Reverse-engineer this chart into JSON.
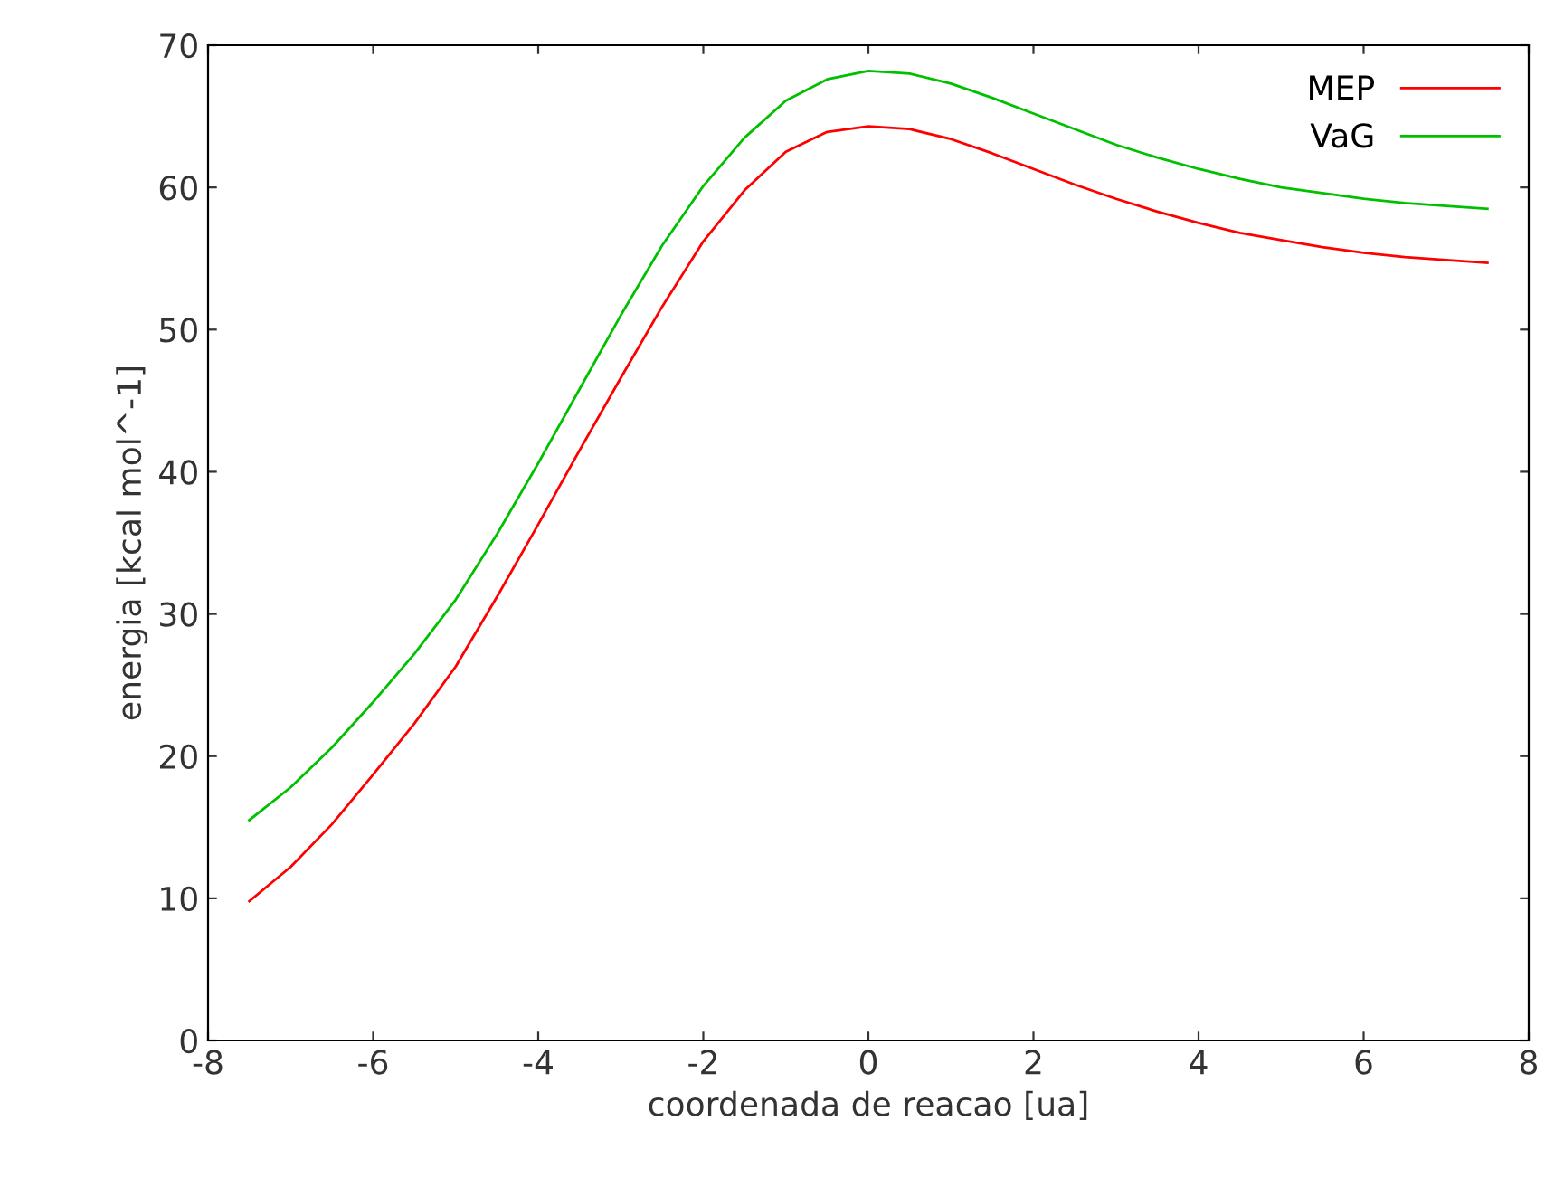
{
  "chart_data": {
    "type": "line",
    "xlabel": "coordenada de reacao [ua]",
    "ylabel": "energia [kcal mol^-1]",
    "x": [
      -7.5,
      -7,
      -6.5,
      -6,
      -5.5,
      -5,
      -4.5,
      -4,
      -3.5,
      -3,
      -2.5,
      -2,
      -1.5,
      -1,
      -0.5,
      0,
      0.5,
      1,
      1.5,
      2,
      2.5,
      3,
      3.5,
      4,
      4.5,
      5,
      5.5,
      6,
      6.5,
      7,
      7.5
    ],
    "series": [
      {
        "name": "MEP",
        "color": "#ff0000",
        "values": [
          9.8,
          12.2,
          15.2,
          18.7,
          22.3,
          26.3,
          31.2,
          36.3,
          41.5,
          46.6,
          51.6,
          56.2,
          59.8,
          62.5,
          63.9,
          64.3,
          64.1,
          63.4,
          62.4,
          61.3,
          60.2,
          59.2,
          58.3,
          57.5,
          56.8,
          56.3,
          55.8,
          55.4,
          55.1,
          54.9,
          54.7
        ]
      },
      {
        "name": "VaG",
        "color": "#00c000",
        "values": [
          15.5,
          17.8,
          20.6,
          23.8,
          27.2,
          31.0,
          35.6,
          40.6,
          45.8,
          51.0,
          55.9,
          60.1,
          63.5,
          66.1,
          67.6,
          68.2,
          68.0,
          67.3,
          66.3,
          65.2,
          64.1,
          63.0,
          62.1,
          61.3,
          60.6,
          60.0,
          59.6,
          59.2,
          58.9,
          58.7,
          58.5
        ]
      }
    ],
    "xlim": [
      -8,
      8
    ],
    "xticks": [
      -8,
      -6,
      -4,
      -2,
      0,
      2,
      4,
      6,
      8
    ],
    "ylim": [
      0,
      70
    ],
    "yticks": [
      0,
      10,
      20,
      30,
      40,
      50,
      60,
      70
    ],
    "grid": false,
    "legend": "top right",
    "line_style": "solid",
    "marker": "none"
  }
}
